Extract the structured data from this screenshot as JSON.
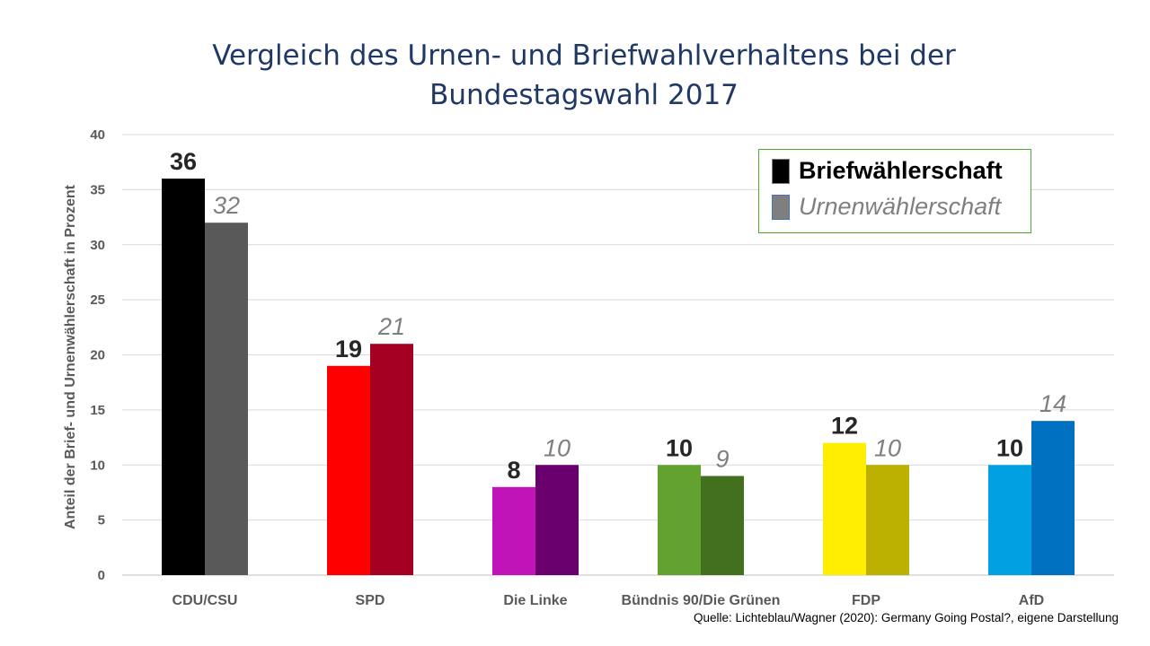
{
  "chart_data": {
    "type": "bar",
    "title": "Vergleich des Urnen- und Briefwahlverhaltens bei der Bundestagswahl 2017",
    "title_lines": [
      "Vergleich des Urnen- und Briefwahlverhaltens bei der",
      "Bundestagswahl 2017"
    ],
    "ylabel": "Anteil der Brief- und Urnenwählerschaft in Prozent",
    "xlabel": "",
    "ylim": [
      0,
      40
    ],
    "yticks": [
      0,
      5,
      10,
      15,
      20,
      25,
      30,
      35,
      40
    ],
    "grid": true,
    "legend_placement": "top-right",
    "categories": [
      "CDU/CSU",
      "SPD",
      "Die Linke",
      "Bündnis 90/Die Grünen",
      "FDP",
      "AfD"
    ],
    "series": [
      {
        "name": "Briefwählerschaft",
        "values": [
          36,
          19,
          8,
          10,
          12,
          10
        ],
        "colors": [
          "#000000",
          "#ff0000",
          "#c014b8",
          "#62a230",
          "#ffee00",
          "#00a0e3"
        ],
        "label_color": "#262626",
        "label_style": "bold"
      },
      {
        "name": "Urnenwählerschaft",
        "values": [
          32,
          21,
          10,
          9,
          10,
          14
        ],
        "colors": [
          "#595959",
          "#a50021",
          "#6a006e",
          "#43701f",
          "#bcb000",
          "#0070c0"
        ],
        "label_color": "#7f7f7f",
        "label_style": "italic"
      }
    ]
  },
  "legend": {
    "items": [
      "Briefwählerschaft",
      "Urnenwählerschaft"
    ]
  },
  "source": "Quelle: Lichteblau/Wagner (2020): Germany Going Postal?, eigene Darstellung"
}
